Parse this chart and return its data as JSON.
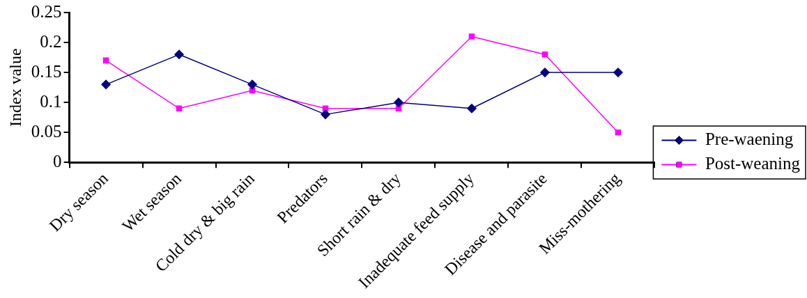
{
  "chart_data": {
    "type": "line",
    "ylabel": "Index value",
    "categories": [
      "Dry season",
      "Wet season",
      "Cold dry & big rain",
      "Predators",
      "Short rain & dry",
      "Inadequate feed supply",
      "Disease and parasite",
      "Miss-mothering"
    ],
    "series": [
      {
        "name": "Pre-waening",
        "color": "#000080",
        "marker": "diamond",
        "values": [
          0.13,
          0.18,
          0.13,
          0.08,
          0.1,
          0.09,
          0.15,
          0.15
        ]
      },
      {
        "name": "Post-weaning",
        "color": "#ff00ff",
        "marker": "square",
        "values": [
          0.17,
          0.09,
          0.12,
          0.09,
          0.09,
          0.21,
          0.18,
          0.05
        ]
      }
    ],
    "ylim": [
      0,
      0.25
    ],
    "yticks": [
      0,
      0.05,
      0.1,
      0.15,
      0.2,
      0.25
    ],
    "grid": false,
    "legend": "right",
    "line_style": "solid"
  }
}
